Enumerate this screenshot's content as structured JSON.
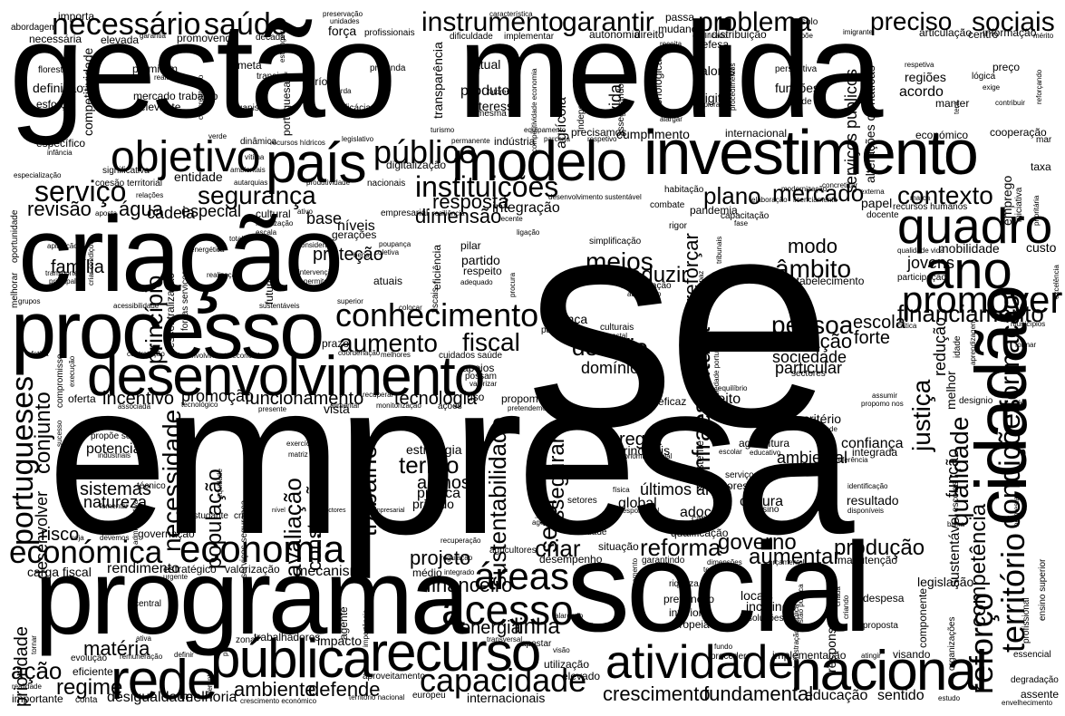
{
  "words": [
    "se",
    "empresa",
    "social",
    "gestão",
    "medida",
    "criação",
    "programa",
    "investimento",
    "processo",
    "desenvolvimento",
    "cidadão",
    "nacional",
    "atividade",
    "pública",
    "recurso",
    "rede",
    "país",
    "modelo",
    "quadro",
    "ano",
    "promover",
    "objetivo",
    "economia",
    "económica",
    "conhecimento",
    "acesso",
    "áreas",
    "capacidade",
    "território",
    "condições",
    "formação",
    "portugueses",
    "necessário",
    "saúde",
    "instrumento",
    "garantir",
    "problema",
    "preciso",
    "sociais",
    "público",
    "serviço",
    "segurança",
    "instituições",
    "dimensão",
    "contexto",
    "mercado",
    "plano",
    "reforço",
    "qualidade",
    "justiça",
    "infraestrutura",
    "sustentabilidade",
    "setor",
    "assegurar",
    "pessoa",
    "inovação",
    "âmbito",
    "desafio",
    "meios",
    "reduzir",
    "reforçar",
    "aumento",
    "fiscal",
    "financiamento",
    "modo",
    "jovens",
    "escola",
    "forte",
    "sociedade",
    "particular",
    "domínio",
    "trabalho",
    "avaliação",
    "construção",
    "população",
    "necessidade",
    "conjunto",
    "princípio",
    "família",
    "proteção",
    "revisão",
    "água",
    "cadeia",
    "especial",
    "base",
    "níveis",
    "resposta",
    "integração",
    "funcionamento",
    "tecnologia",
    "incentivo",
    "promoção",
    "reforma",
    "governo",
    "produção",
    "aumentar",
    "criar",
    "projeto",
    "financeiro",
    "energia",
    "linha",
    "crescimento",
    "fundamental",
    "educação",
    "sentido",
    "ambiente",
    "defende",
    "desigualdade",
    "melhoria",
    "regime",
    "ação",
    "matéria",
    "prioridade",
    "desenvolver",
    "risco",
    "sistemas",
    "natureza",
    "potencial",
    "termo",
    "alunos",
    "prática",
    "privado",
    "estratégia",
    "regra",
    "principais",
    "últimos anos",
    "global",
    "cultura",
    "ambiental",
    "confiança",
    "integrada",
    "resultado",
    "adoção",
    "critério",
    "efeito",
    "eficaz",
    "mobilidade",
    "custo",
    "nível",
    "digital",
    "valores",
    "funções",
    "regiões",
    "acordo",
    "manter",
    "centro",
    "informação",
    "articulação",
    "autonomia",
    "direito",
    "distribuição",
    "perspetiva",
    "sede",
    "cumprimento",
    "internacional",
    "cooperação",
    "económico",
    "mar",
    "taxa",
    "emprego",
    "papel",
    "pandemia",
    "capacitação",
    "docente",
    "externa",
    "combate",
    "habitação",
    "rigor",
    "transição",
    "meta",
    "período",
    "profunda",
    "atual",
    "produto",
    "interesse",
    "mesma",
    "transparência",
    "agrícola",
    "vida",
    "tecnológica",
    "competitividade",
    "definição",
    "esforço",
    "floresta",
    "permitam",
    "realizar",
    "mercado trabalho",
    "relevante",
    "organismo",
    "eficácia",
    "perda",
    "específico",
    "infância",
    "dinâmica",
    "recursos hídricos",
    "vítima",
    "ambientais",
    "autarquias",
    "produtividade",
    "nacionais",
    "digitalização",
    "entidade",
    "especialização",
    "significativa",
    "coesão territorial",
    "relações",
    "aposta",
    "cultural",
    "fiscalização",
    "escala",
    "gerações",
    "empresarial",
    "resiliência",
    "recente",
    "ligação",
    "oportunidade",
    "aplicação",
    "energética",
    "transporte",
    "principal",
    "criar condições",
    "total",
    "realização",
    "descentralização",
    "forças serviços",
    "futuro",
    "considera",
    "intervenção",
    "permite",
    "atuais",
    "poupança",
    "coletiva",
    "bens",
    "pilar",
    "partido",
    "respeito",
    "adequado",
    "eficiência",
    "fiscais",
    "procura",
    "simplificação",
    "consolidação",
    "investigação",
    "adaptação",
    "estabelecimento",
    "melhorar",
    "grupos",
    "acessibilidade",
    "sustentáveis",
    "superior",
    "colocar",
    "criança",
    "países",
    "culturais",
    "florestal",
    "prazo",
    "coordenação",
    "melhores",
    "efetiva",
    "contratação",
    "desenvolvimento económico",
    "compromisso",
    "execução",
    "oferta",
    "associada",
    "tecnológico",
    "presente",
    "monitorização",
    "ações",
    "pretendemos",
    "cuidados saúde",
    "apoios",
    "possam",
    "valorizar",
    "uso",
    "recuperar",
    "propomo",
    "vista",
    "alimentar",
    "exercício",
    "matriz",
    "propõe se",
    "sucesso",
    "industriais",
    "técnico",
    "administrativa",
    "equidade",
    "estudante",
    "crise",
    "serviços segurança",
    "fomentar",
    "seja",
    "devemos",
    "governação",
    "carga fiscal",
    "rendimento",
    "estratégico",
    "valorização",
    "urgente",
    "mecanismo",
    "médio",
    "integrado",
    "alterações climáticas",
    "serviços públicos",
    "sectores",
    "equilíbrio",
    "agricultura",
    "educativo",
    "referência",
    "identificação",
    "gestão pública",
    "recuperação",
    "agricultores",
    "desempenho",
    "situação",
    "garantindo",
    "dimensões",
    "orçamental",
    "manutenção",
    "legislação",
    "componente",
    "responsabilidade",
    "criando",
    "despesa",
    "proposta",
    "locais",
    "incluindo",
    "soluções",
    "riqueza",
    "prevenção",
    "interior",
    "europeia",
    "fixação",
    "pagamento",
    "apostar",
    "visão",
    "utilização",
    "aproveitamento",
    "elevado",
    "internacionais",
    "europeu",
    "território nacional",
    "crescimento económico",
    "trabalhadores",
    "impacto",
    "zona",
    "planeamento",
    "agente",
    "importância",
    "central",
    "ativa",
    "evolução",
    "eficiente",
    "remuneração",
    "definir",
    "diferente",
    "realidade",
    "importante",
    "conta",
    "implementação",
    "atingir",
    "visando",
    "essencial",
    "degradação",
    "assente",
    "envelhecimento",
    "estudo",
    "organizações",
    "municípios",
    "excelência",
    "qualidade vida",
    "participação",
    "crítica",
    "sectores",
    "assumir",
    "propomo nos",
    "entende",
    "designio",
    "formar",
    "lei",
    "competência",
    "sustentável",
    "função",
    "redução",
    "melhor",
    "idade",
    "aprendizagem",
    "bem estar",
    "ensino superior",
    "profissional",
    "baixa",
    "disponíveis",
    "empresarial",
    "fase",
    "tribunais",
    "capaz",
    "sociedade portuguesa",
    "escolas",
    "elaboração",
    "licenciamento",
    "modernização",
    "concretizar",
    "iniciativa",
    "prioritária",
    "importa",
    "abordagem",
    "necessária",
    "elevada",
    "garantia",
    "promovendo",
    "década",
    "estrangeiro",
    "força",
    "profissionais",
    "preservação",
    "unidades",
    "característica",
    "dificuldade",
    "implementar",
    "passa",
    "mudança",
    "qualificado",
    "receita",
    "defesa",
    "propõe",
    "solo",
    "imigrante",
    "mérito",
    "preço",
    "lógica",
    "exige",
    "reforçando",
    "contribuir",
    "terá",
    "permanente",
    "indústria",
    "turismo",
    "equipamento",
    "parceria",
    "respetivo",
    "precisamos",
    "verde",
    "legislativo",
    "ativo",
    "regulação",
    "caso",
    "transversal",
    "alargado",
    "cidade",
    "agenda",
    "setores",
    "impostos",
    "capazes",
    "qualificação",
    "produtores",
    "ensino",
    "escolar",
    "desenvolvimento sustentável",
    "portuguesa",
    "concretização",
    "assegurando",
    "independente",
    "alargar",
    "exploração",
    "procedimentos",
    "respetiva",
    "competitividade economia",
    "fatores",
    "fundo",
    "proceder",
    "serviços",
    "administração pública",
    "tornar",
    "terão",
    "criada",
    "existente",
    "económico social",
    "responsável",
    "física",
    "marca",
    "recursos humanos"
  ]
}
